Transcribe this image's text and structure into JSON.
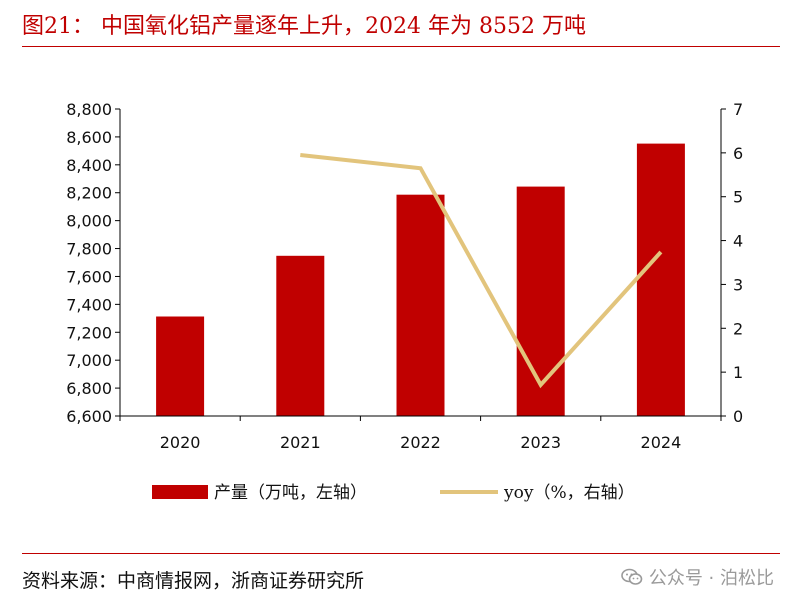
{
  "header": {
    "title": "图21：  中国氧化铝产量逐年上升，2024 年为 8552 万吨"
  },
  "footer": {
    "source": "资料来源：中商情报网，浙商证券研究所",
    "watermark": "公众号 · 泊松比"
  },
  "chart_data": {
    "type": "bar",
    "categories": [
      "2020",
      "2021",
      "2022",
      "2023",
      "2024"
    ],
    "series": [
      {
        "name": "产量（万吨，左轴）",
        "type": "bar",
        "axis": "left",
        "values": [
          7313,
          7748,
          8186,
          8244,
          8552
        ],
        "color": "#c00000"
      },
      {
        "name": "yoy（%，右轴）",
        "type": "line",
        "axis": "right",
        "values": [
          null,
          5.95,
          5.65,
          0.71,
          3.74
        ],
        "color": "#e2c47c"
      }
    ],
    "y_left": {
      "min": 6600,
      "max": 8800,
      "step": 200,
      "ticks": [
        "6,600",
        "6,800",
        "7,000",
        "7,200",
        "7,400",
        "7,600",
        "7,800",
        "8,000",
        "8,200",
        "8,400",
        "8,600",
        "8,800"
      ]
    },
    "y_right": {
      "min": 0,
      "max": 7,
      "step": 1,
      "ticks": [
        "0",
        "1",
        "2",
        "3",
        "4",
        "5",
        "6",
        "7"
      ]
    },
    "xlabel": "",
    "ylabel": "",
    "grid": false,
    "legend": "bottom"
  }
}
